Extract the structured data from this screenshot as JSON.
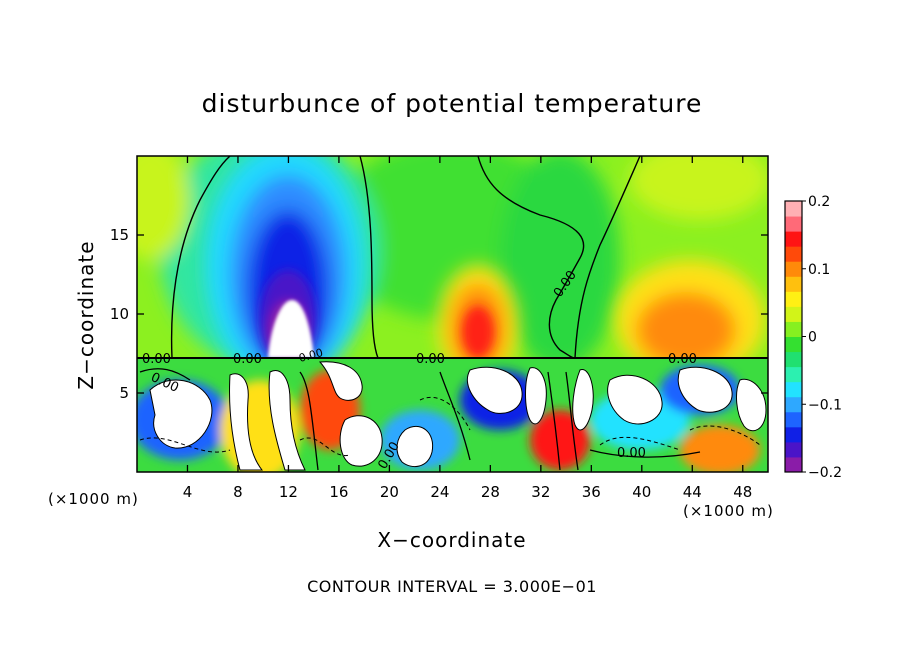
{
  "chart_data": {
    "type": "heatmap",
    "title": "disturbunce of potential temperature",
    "xlabel": "X−coordinate",
    "ylabel": "Z−coordinate",
    "x_unit_label": "(×1000 m)",
    "z_unit_label": "(×1000 m)",
    "footer": "CONTOUR INTERVAL = 3.000E−01",
    "xlim": [
      0,
      50
    ],
    "ylim": [
      0,
      20
    ],
    "x_ticks": [
      4,
      8,
      12,
      16,
      20,
      24,
      28,
      32,
      36,
      40,
      44,
      48
    ],
    "y_ticks": [
      5,
      10,
      15
    ],
    "colorbar": {
      "min": -0.2,
      "max": 0.2,
      "ticks": [
        "0.2",
        "0.1",
        "0",
        "−0.1",
        "−0.2"
      ],
      "colors": [
        "#8a1ca8",
        "#4a14c8",
        "#1020e6",
        "#1e64ff",
        "#2ea8ff",
        "#22e2ff",
        "#2cf0b0",
        "#20e070",
        "#34e030",
        "#86f020",
        "#d2f418",
        "#fff014",
        "#ffc00e",
        "#ff8a0a",
        "#ff4a0a",
        "#ff1414",
        "#ff6a78",
        "#ffb0b4"
      ]
    },
    "contour_labels": [
      "0.00",
      "0.00",
      "0.00",
      "0.00",
      "0.00",
      "0.00",
      "0.00",
      "0.00",
      "0.00"
    ],
    "interface_z": 7.2,
    "upper_features": [
      {
        "x": 12.5,
        "z": 10.0,
        "value": -0.2
      },
      {
        "x": 27.0,
        "z": 9.5,
        "value": 0.15
      },
      {
        "x": 43.0,
        "z": 10.0,
        "value": 0.12
      },
      {
        "x": 34.0,
        "z": 15.0,
        "value": 0.0
      }
    ]
  }
}
